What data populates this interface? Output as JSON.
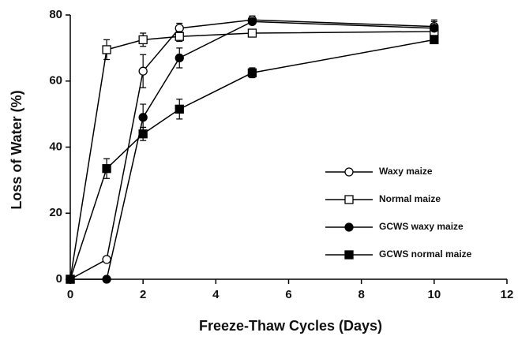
{
  "chart_data": {
    "type": "line",
    "x_label": "Freeze-Thaw Cycles (Days)",
    "y_label": "Loss of Water (%)",
    "x": [
      0,
      1,
      2,
      3,
      5,
      10
    ],
    "xlim": [
      0,
      12
    ],
    "xticks": [
      0,
      2,
      4,
      6,
      8,
      10,
      12
    ],
    "ylim": [
      0,
      80
    ],
    "yticks": [
      0,
      20,
      40,
      60,
      80
    ],
    "series": [
      {
        "name": "Waxy maize",
        "color": "#000000",
        "marker": "circle",
        "filled": false,
        "values": [
          0,
          6,
          63,
          76,
          78.5,
          76.5
        ],
        "errors": [
          0,
          0,
          5,
          1.5,
          1.2,
          2
        ]
      },
      {
        "name": "Normal maize",
        "color": "#000000",
        "marker": "square",
        "filled": false,
        "values": [
          0,
          69.5,
          72.5,
          73.5,
          74.5,
          75
        ],
        "errors": [
          0,
          3,
          2,
          1.5,
          0,
          3
        ]
      },
      {
        "name": "GCWS waxy maize",
        "color": "#000000",
        "marker": "circle",
        "filled": true,
        "values": [
          0,
          0,
          49,
          67,
          78,
          76
        ],
        "errors": [
          0,
          0,
          4,
          3,
          0,
          0
        ]
      },
      {
        "name": "GCWS normal maize",
        "color": "#000000",
        "marker": "square",
        "filled": true,
        "values": [
          0,
          33.5,
          44,
          51.5,
          62.5,
          72.5
        ],
        "errors": [
          0,
          3,
          2,
          3,
          1.5,
          1
        ]
      }
    ]
  }
}
